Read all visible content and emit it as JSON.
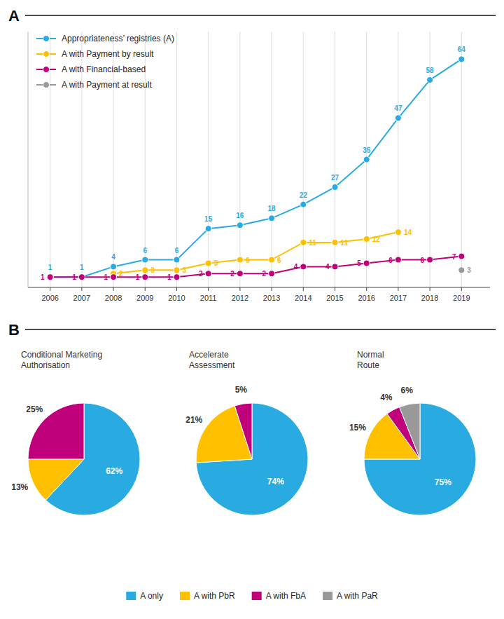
{
  "chart_data": [
    {
      "type": "line",
      "title": "A",
      "x": [
        2006,
        2007,
        2008,
        2009,
        2010,
        2011,
        2012,
        2013,
        2014,
        2015,
        2016,
        2017,
        2018,
        2019
      ],
      "series": [
        {
          "name": "Appropriateness’ registries (A)",
          "color": "#29ABE2",
          "marker": "circle",
          "line_style": "solid",
          "values": [
            1,
            1,
            4,
            6,
            6,
            15,
            16,
            18,
            22,
            27,
            35,
            47,
            58,
            64
          ]
        },
        {
          "name": "A with Payment by result",
          "color": "#FFC000",
          "marker": "circle",
          "line_style": "solid",
          "values": [
            null,
            null,
            2,
            3,
            3,
            5,
            6,
            6,
            11,
            11,
            12,
            14,
            null,
            null
          ]
        },
        {
          "name": "A with Financial-based",
          "color": "#C0007A",
          "marker": "circle",
          "line_style": "solid",
          "values": [
            1,
            1,
            1,
            1,
            1,
            2,
            2,
            2,
            4,
            4,
            5,
            6,
            6,
            7
          ]
        },
        {
          "name": "A with Payment at result",
          "color": "#999999",
          "marker": "circle",
          "line_style": "solid",
          "values": [
            null,
            null,
            null,
            null,
            null,
            null,
            null,
            null,
            null,
            null,
            null,
            null,
            null,
            3
          ]
        }
      ],
      "xlim": [
        2005.3,
        2019.9
      ],
      "xticks": [
        2006,
        2007,
        2008,
        2009,
        2010,
        2011,
        2012,
        2013,
        2014,
        2015,
        2016,
        2017,
        2018,
        2019
      ],
      "ylim": [
        -2,
        72
      ],
      "tick_labels": "x",
      "grid": true,
      "legend": "top-left",
      "data_labels": true
    },
    {
      "type": "pie",
      "title": "Conditional Marketing\nAuthorisation",
      "annotations": [
        {
          "text": "B"
        }
      ],
      "values": [
        62,
        13,
        25
      ],
      "value_labels": [
        "62%",
        "13%",
        "25%"
      ],
      "colors": [
        "#29ABE2",
        "#FFC000",
        "#C0007A"
      ],
      "data_labels": true
    },
    {
      "type": "pie",
      "title": "Accelerate\nAssessment",
      "values": [
        74,
        21,
        5
      ],
      "value_labels": [
        "74%",
        "21%",
        "5%"
      ],
      "colors": [
        "#29ABE2",
        "#FFC000",
        "#C0007A"
      ],
      "data_labels": true
    },
    {
      "type": "pie",
      "title": "Normal\nRoute",
      "categories": [
        "A only",
        "A with PbR",
        "A with FbA",
        "A with PaR"
      ],
      "values": [
        75,
        15,
        4,
        6
      ],
      "value_labels": [
        "75%",
        "15%",
        "4%",
        "6%"
      ],
      "colors": [
        "#29ABE2",
        "#FFC000",
        "#C0007A",
        "#999999"
      ],
      "data_labels": true,
      "legend": "bottom"
    }
  ]
}
